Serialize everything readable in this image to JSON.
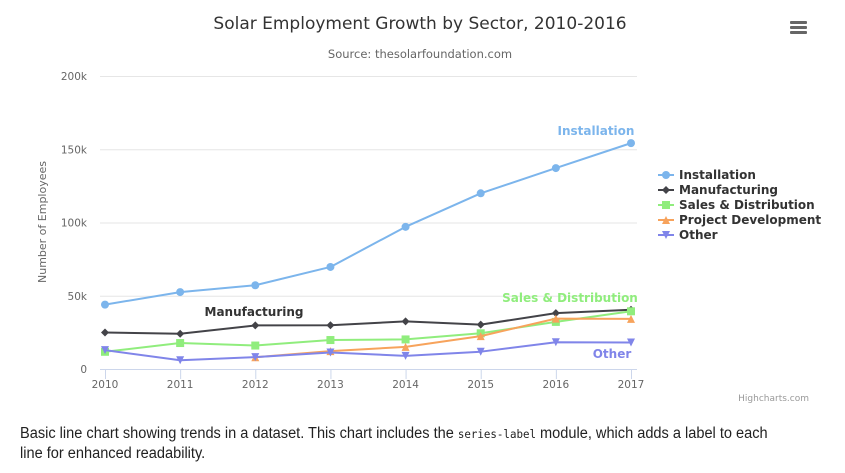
{
  "chart_data": {
    "type": "line",
    "title": "Solar Employment Growth by Sector, 2010-2016",
    "subtitle": "Source: thesolarfoundation.com",
    "xlabel": "",
    "ylabel": "Number of Employees",
    "x": [
      2010,
      2011,
      2012,
      2013,
      2014,
      2015,
      2016,
      2017
    ],
    "xlim": [
      2010,
      2017
    ],
    "ylim": [
      0,
      200000
    ],
    "yticks": [
      0,
      50000,
      100000,
      150000,
      200000
    ],
    "ytick_labels": [
      "0",
      "50k",
      "100k",
      "150k",
      "200k"
    ],
    "xtick_labels": [
      "2010",
      "2011",
      "2012",
      "2013",
      "2014",
      "2015",
      "2016",
      "2017"
    ],
    "grid": true,
    "legend_position": "right",
    "series": [
      {
        "name": "Installation",
        "color": "#7cb5ec",
        "marker": "circle",
        "values": [
          43934,
          52503,
          57177,
          69658,
          97031,
          119931,
          137133,
          154175
        ],
        "label": "Installation"
      },
      {
        "name": "Manufacturing",
        "color": "#434348",
        "marker": "diamond",
        "values": [
          24916,
          24064,
          29742,
          29851,
          32490,
          30282,
          38121,
          40434
        ],
        "label": "Manufacturing"
      },
      {
        "name": "Sales & Distribution",
        "color": "#90ed7d",
        "marker": "square",
        "values": [
          11744,
          17722,
          16005,
          19771,
          20185,
          24377,
          32147,
          39387
        ],
        "label": "Sales & Distribution"
      },
      {
        "name": "Project Development",
        "color": "#f7a35c",
        "marker": "triangle",
        "values": [
          null,
          null,
          7988,
          12169,
          15112,
          22452,
          34400,
          34227
        ],
        "label": ""
      },
      {
        "name": "Other",
        "color": "#8085e9",
        "marker": "triangle-down",
        "values": [
          12908,
          5948,
          8105,
          11248,
          8989,
          11816,
          18274,
          18111
        ],
        "label": "Other"
      }
    ]
  },
  "menu": {
    "icon": "hamburger-menu-icon"
  },
  "credits": "Highcharts.com",
  "caption": {
    "before": "Basic line chart showing trends in a dataset. This chart includes the ",
    "code": "series-label",
    "after": " module, which adds a label to each line for enhanced readability."
  }
}
